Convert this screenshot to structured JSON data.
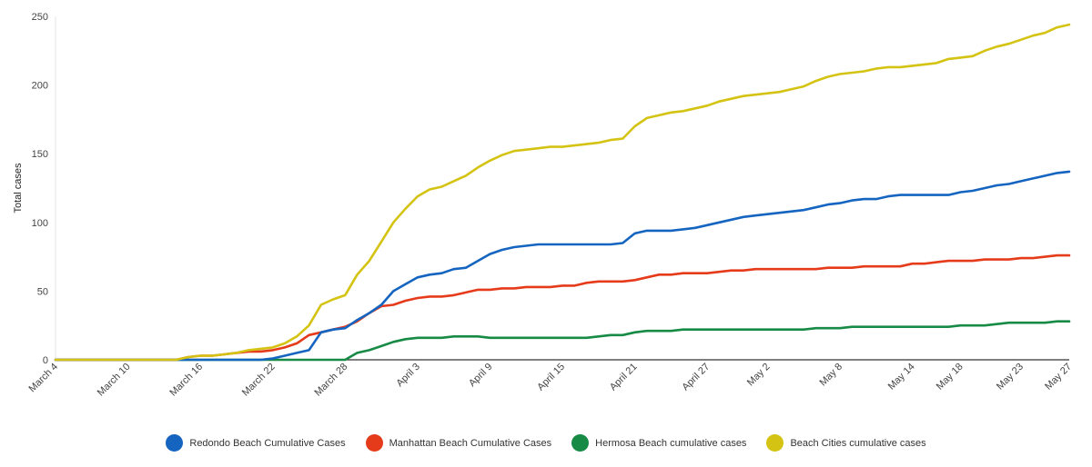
{
  "chart_data": {
    "type": "line",
    "title": "",
    "xlabel": "",
    "ylabel": "Total cases",
    "ylim": [
      0,
      250
    ],
    "yticks": [
      0,
      50,
      100,
      150,
      200,
      250
    ],
    "grid": false,
    "legend_position": "bottom",
    "x_start": "March 4",
    "x_end": "May 27",
    "x_tick_labels": [
      "March 4",
      "March 10",
      "March 16",
      "March 22",
      "March 28",
      "April 3",
      "April 9",
      "April 15",
      "April 21",
      "April 27",
      "May 2",
      "May 8",
      "May 14",
      "May 18",
      "May 23",
      "May 27"
    ],
    "x_tick_day_index": [
      0,
      6,
      12,
      18,
      24,
      30,
      36,
      42,
      48,
      54,
      59,
      65,
      71,
      75,
      80,
      84
    ],
    "series": [
      {
        "name": "Redondo Beach Cumulative Cases",
        "color": "#1565c0",
        "values": [
          0,
          0,
          0,
          0,
          0,
          0,
          0,
          0,
          0,
          0,
          0,
          0,
          0,
          0,
          0,
          0,
          0,
          0,
          1,
          3,
          5,
          7,
          20,
          22,
          23,
          29,
          34,
          40,
          50,
          55,
          60,
          62,
          63,
          66,
          67,
          72,
          77,
          80,
          82,
          83,
          84,
          84,
          84,
          84,
          84,
          84,
          84,
          85,
          92,
          94,
          94,
          94,
          95,
          96,
          98,
          100,
          102,
          104,
          105,
          106,
          107,
          108,
          109,
          111,
          113,
          114,
          116,
          117,
          117,
          119,
          120,
          120,
          120,
          120,
          120,
          122,
          123,
          125,
          127,
          128,
          130,
          132,
          134,
          136,
          137
        ]
      },
      {
        "name": "Manhattan Beach Cumulative Cases",
        "color": "#e53b1b",
        "values": [
          0,
          0,
          0,
          0,
          0,
          0,
          0,
          0,
          0,
          0,
          0,
          2,
          3,
          3,
          4,
          5,
          6,
          6,
          7,
          9,
          12,
          18,
          20,
          22,
          24,
          28,
          34,
          39,
          40,
          43,
          45,
          46,
          46,
          47,
          49,
          51,
          51,
          52,
          52,
          53,
          53,
          53,
          54,
          54,
          56,
          57,
          57,
          57,
          58,
          60,
          62,
          62,
          63,
          63,
          63,
          64,
          65,
          65,
          66,
          66,
          66,
          66,
          66,
          66,
          67,
          67,
          67,
          68,
          68,
          68,
          68,
          70,
          70,
          71,
          72,
          72,
          72,
          73,
          73,
          73,
          74,
          74,
          75,
          76,
          76
        ]
      },
      {
        "name": "Hermosa Beach cumulative cases",
        "color": "#178a46",
        "values": [
          0,
          0,
          0,
          0,
          0,
          0,
          0,
          0,
          0,
          0,
          0,
          0,
          0,
          0,
          0,
          0,
          0,
          0,
          0,
          0,
          0,
          0,
          0,
          0,
          0,
          5,
          7,
          10,
          13,
          15,
          16,
          16,
          16,
          17,
          17,
          17,
          16,
          16,
          16,
          16,
          16,
          16,
          16,
          16,
          16,
          17,
          18,
          18,
          20,
          21,
          21,
          21,
          22,
          22,
          22,
          22,
          22,
          22,
          22,
          22,
          22,
          22,
          22,
          23,
          23,
          23,
          24,
          24,
          24,
          24,
          24,
          24,
          24,
          24,
          24,
          25,
          25,
          25,
          26,
          27,
          27,
          27,
          27,
          28,
          28
        ]
      },
      {
        "name": "Beach Cities cumulative cases",
        "color": "#d4c312",
        "values": [
          0,
          0,
          0,
          0,
          0,
          0,
          0,
          0,
          0,
          0,
          0,
          2,
          3,
          3,
          4,
          5,
          7,
          8,
          9,
          12,
          17,
          25,
          40,
          44,
          47,
          62,
          72,
          86,
          100,
          110,
          119,
          124,
          126,
          130,
          134,
          140,
          145,
          149,
          152,
          153,
          154,
          155,
          155,
          156,
          157,
          158,
          160,
          161,
          170,
          176,
          178,
          180,
          181,
          183,
          185,
          188,
          190,
          192,
          193,
          194,
          195,
          197,
          199,
          203,
          206,
          208,
          209,
          210,
          212,
          213,
          213,
          214,
          215,
          216,
          219,
          220,
          221,
          225,
          228,
          230,
          233,
          236,
          238,
          242,
          244
        ]
      }
    ]
  }
}
